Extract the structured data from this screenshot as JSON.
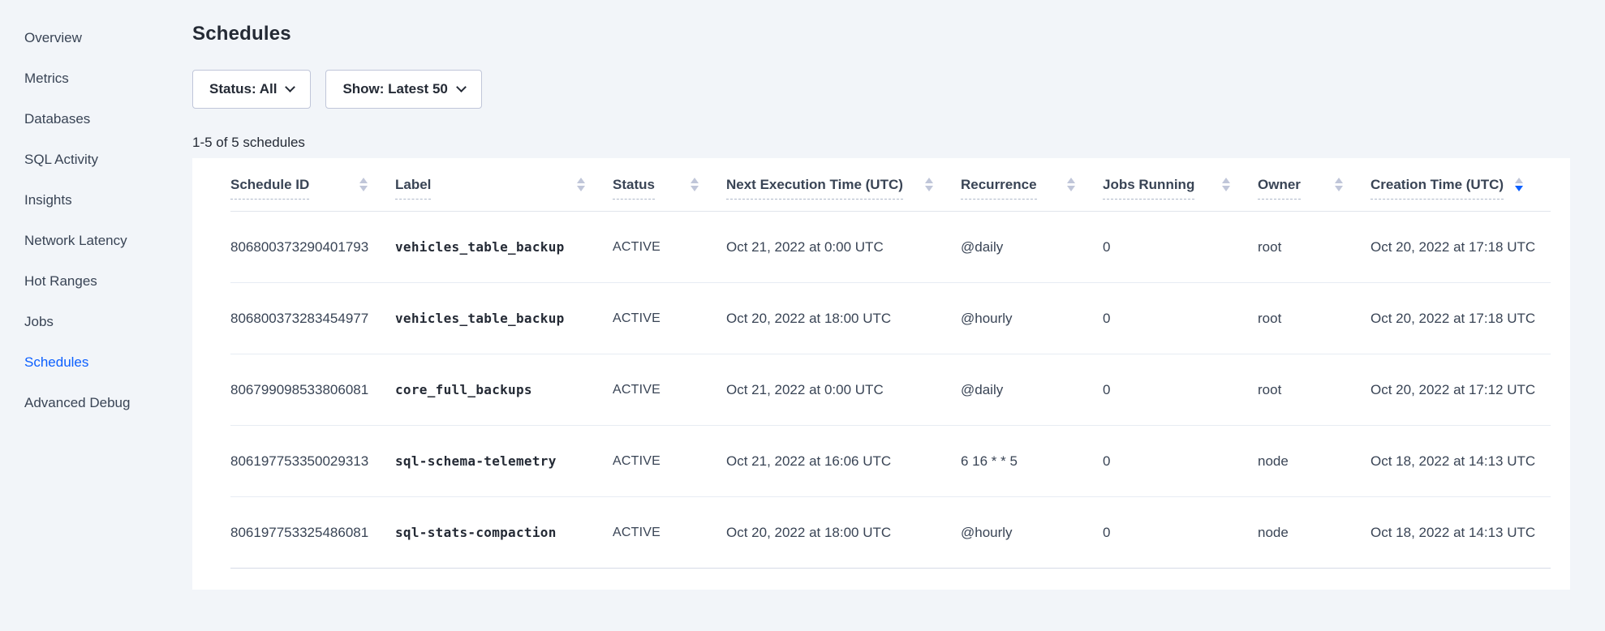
{
  "colors": {
    "page_background": "#f2f5f9",
    "card_background": "#ffffff",
    "accent_blue": "#0b5fff",
    "text_dark": "#242a35",
    "text_body": "#394455",
    "sort_inactive": "#c0c6d9"
  },
  "sidebar": {
    "items": [
      {
        "label": "Overview"
      },
      {
        "label": "Metrics"
      },
      {
        "label": "Databases"
      },
      {
        "label": "SQL Activity"
      },
      {
        "label": "Insights"
      },
      {
        "label": "Network Latency"
      },
      {
        "label": "Hot Ranges"
      },
      {
        "label": "Jobs"
      },
      {
        "label": "Schedules"
      },
      {
        "label": "Advanced Debug"
      }
    ]
  },
  "header": {
    "title": "Schedules"
  },
  "filters": {
    "status_label": "Status: All",
    "show_label": "Show: Latest 50"
  },
  "results_count": "1-5 of 5 schedules",
  "table": {
    "columns": [
      {
        "label": "Schedule ID",
        "sort": "none"
      },
      {
        "label": "Label",
        "sort": "none"
      },
      {
        "label": "Status",
        "sort": "none"
      },
      {
        "label": "Next Execution Time (UTC)",
        "sort": "none"
      },
      {
        "label": "Recurrence",
        "sort": "none"
      },
      {
        "label": "Jobs Running",
        "sort": "none"
      },
      {
        "label": "Owner",
        "sort": "none"
      },
      {
        "label": "Creation Time (UTC)",
        "sort": "desc"
      }
    ],
    "rows": [
      {
        "schedule_id": "806800373290401793",
        "label": "vehicles_table_backup",
        "status": "ACTIVE",
        "next_execution": "Oct 21, 2022 at 0:00 UTC",
        "recurrence": "@daily",
        "jobs_running": "0",
        "owner": "root",
        "creation_time": "Oct 20, 2022 at 17:18 UTC"
      },
      {
        "schedule_id": "806800373283454977",
        "label": "vehicles_table_backup",
        "status": "ACTIVE",
        "next_execution": "Oct 20, 2022 at 18:00 UTC",
        "recurrence": "@hourly",
        "jobs_running": "0",
        "owner": "root",
        "creation_time": "Oct 20, 2022 at 17:18 UTC"
      },
      {
        "schedule_id": "806799098533806081",
        "label": "core_full_backups",
        "status": "ACTIVE",
        "next_execution": "Oct 21, 2022 at 0:00 UTC",
        "recurrence": "@daily",
        "jobs_running": "0",
        "owner": "root",
        "creation_time": "Oct 20, 2022 at 17:12 UTC"
      },
      {
        "schedule_id": "806197753350029313",
        "label": "sql-schema-telemetry",
        "status": "ACTIVE",
        "next_execution": "Oct 21, 2022 at 16:06 UTC",
        "recurrence": "6 16 * * 5",
        "jobs_running": "0",
        "owner": "node",
        "creation_time": "Oct 18, 2022 at 14:13 UTC"
      },
      {
        "schedule_id": "806197753325486081",
        "label": "sql-stats-compaction",
        "status": "ACTIVE",
        "next_execution": "Oct 20, 2022 at 18:00 UTC",
        "recurrence": "@hourly",
        "jobs_running": "0",
        "owner": "node",
        "creation_time": "Oct 18, 2022 at 14:13 UTC"
      }
    ]
  }
}
